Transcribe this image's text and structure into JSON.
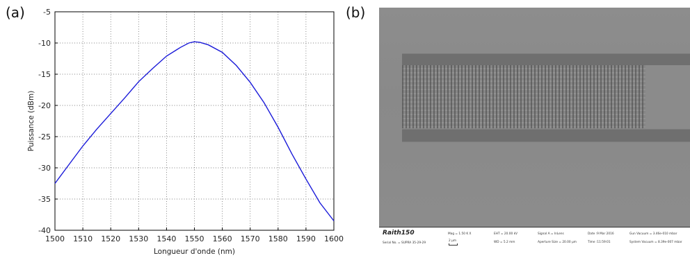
{
  "panels": {
    "a_label": "(a)",
    "b_label": "(b)"
  },
  "chart_data": {
    "type": "line",
    "title": "",
    "xlabel": "Longueur d'onde (nm)",
    "ylabel": "Puissance (dBm)",
    "xlim": [
      1500,
      1600
    ],
    "ylim": [
      -40,
      -5
    ],
    "xticks": [
      1500,
      1510,
      1520,
      1530,
      1540,
      1550,
      1560,
      1570,
      1580,
      1590,
      1600
    ],
    "yticks": [
      -5,
      -10,
      -15,
      -20,
      -25,
      -30,
      -35,
      -40
    ],
    "grid": true,
    "line_color": "#1a1ad9",
    "series": [
      {
        "x": [
          1500,
          1505,
          1510,
          1515,
          1520,
          1525,
          1530,
          1535,
          1540,
          1545,
          1548,
          1550,
          1552,
          1555,
          1560,
          1565,
          1570,
          1575,
          1580,
          1585,
          1590,
          1595,
          1600
        ],
        "y": [
          -32.5,
          -29.5,
          -26.5,
          -23.8,
          -21.3,
          -18.8,
          -16.2,
          -14.1,
          -12.1,
          -10.7,
          -10.0,
          -9.8,
          -9.9,
          -10.3,
          -11.5,
          -13.6,
          -16.3,
          -19.6,
          -23.5,
          -27.8,
          -31.8,
          -35.6,
          -38.5
        ]
      }
    ]
  },
  "sem": {
    "brand": "Raith150",
    "serial": "Serial No. = SUPRA 35-29-29",
    "mag": "Mag = 1.50 K X",
    "scale": "2 μm",
    "eht": "EHT = 20.00 kV",
    "wd": "WD = 5.2 mm",
    "signal": "Signal A = InLens",
    "aperture": "Aperture Size = 20.00 μm",
    "date": "Date :9 Mar 2016",
    "time": "Time :11:59:01",
    "gun_vacuum": "Gun Vacuum = 3.46e-010 mbar",
    "system_vacuum": "System Vacuum = 8.39e-007 mbar"
  }
}
